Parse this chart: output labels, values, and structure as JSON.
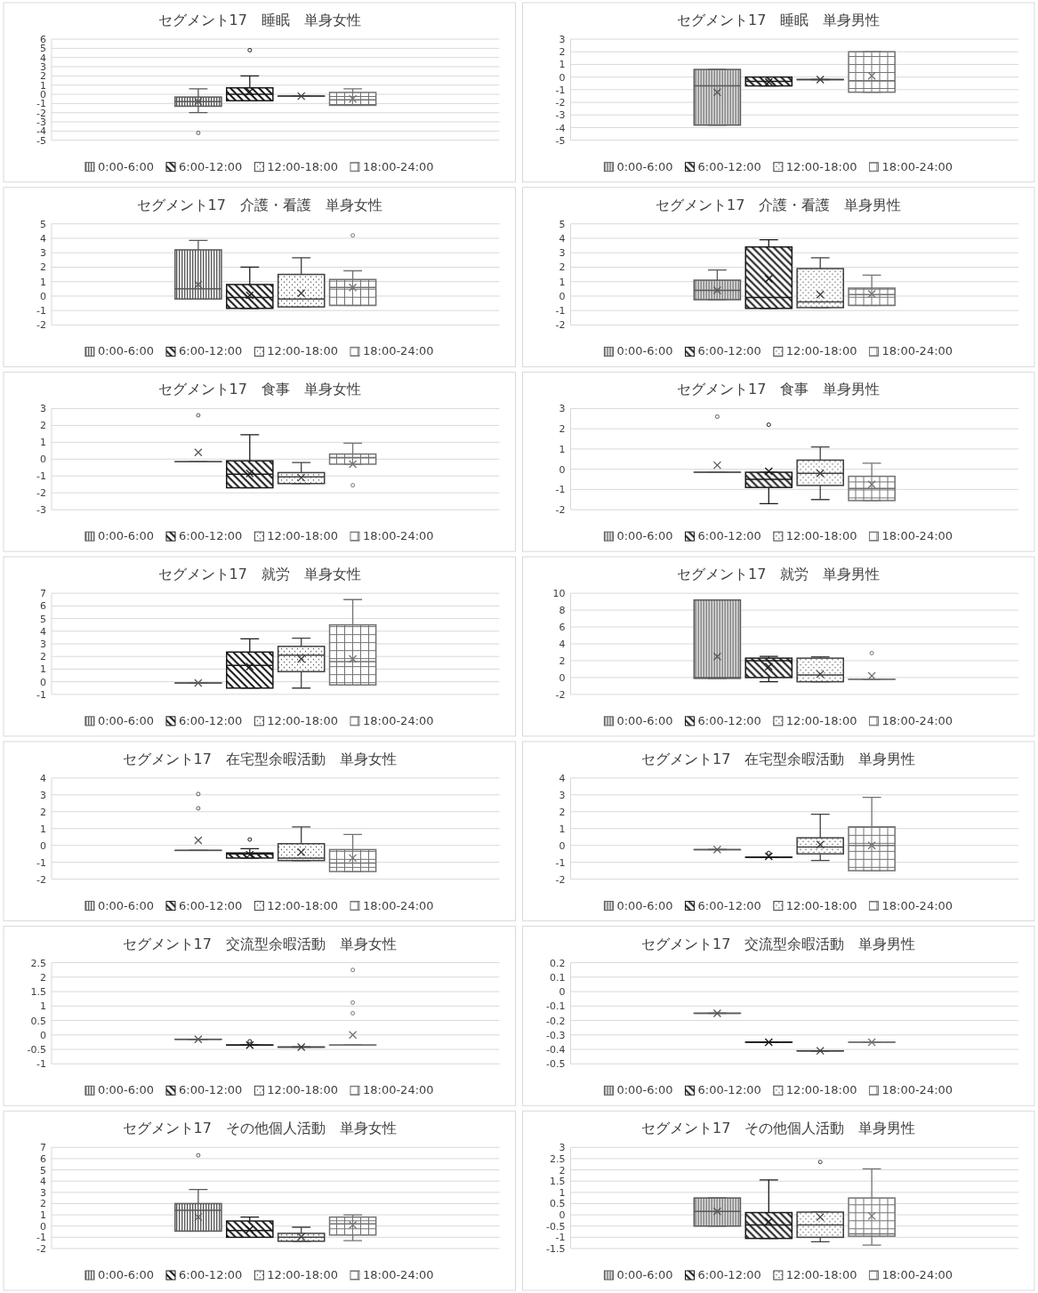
{
  "chart_data": [
    {
      "type": "box",
      "title": "セグメント17　睡眠　単身女性",
      "categories": [
        null
      ],
      "ylim": [
        -5,
        6
      ],
      "yticks": [
        -5,
        -4,
        -3,
        -2,
        -1,
        0,
        1,
        2,
        3,
        4,
        5,
        6
      ],
      "grid": "y",
      "legend": "bottom",
      "series": [
        {
          "name": "0:00-6:00",
          "color": "#595959",
          "boxes": [
            {
              "low": -2,
              "q1": -1.3,
              "median": -0.8,
              "q3": -0.3,
              "high": 0.6,
              "mean": -0.8,
              "outliers": [
                -4.2
              ]
            }
          ]
        },
        {
          "name": "6:00-12:00",
          "color": "#1a1a1a",
          "boxes": [
            {
              "low": -0.7,
              "q1": -0.7,
              "median": 0,
              "q3": 0.7,
              "high": 2,
              "mean": 0.3,
              "outliers": [
                4.8
              ]
            }
          ]
        },
        {
          "name": "12:00-18:00",
          "color": "#404040",
          "boxes": [
            {
              "low": -0.2,
              "q1": -0.2,
              "median": -0.2,
              "q3": -0.2,
              "high": -0.2,
              "mean": -0.2
            }
          ]
        },
        {
          "name": "18:00-24:00",
          "color": "#737373",
          "boxes": [
            {
              "low": -1.2,
              "q1": -1.2,
              "median": -0.6,
              "q3": 0.2,
              "high": 0.6,
              "mean": -0.5
            }
          ]
        }
      ]
    },
    {
      "type": "box",
      "title": "セグメント17　睡眠　単身男性",
      "categories": [
        null
      ],
      "ylim": [
        -5,
        3
      ],
      "yticks": [
        -5,
        -4,
        -3,
        -2,
        -1,
        0,
        1,
        2,
        3
      ],
      "grid": "y",
      "legend": "bottom",
      "series": [
        {
          "name": "0:00-6:00",
          "color": "#595959",
          "boxes": [
            {
              "low": -3.8,
              "q1": -3.8,
              "median": -0.7,
              "q3": 0.6,
              "high": 0.6,
              "mean": -1.2
            }
          ]
        },
        {
          "name": "6:00-12:00",
          "color": "#1a1a1a",
          "boxes": [
            {
              "low": -0.7,
              "q1": -0.7,
              "median": -0.35,
              "q3": 0,
              "high": 0,
              "mean": -0.4
            }
          ]
        },
        {
          "name": "12:00-18:00",
          "color": "#404040",
          "boxes": [
            {
              "low": -0.2,
              "q1": -0.2,
              "median": -0.2,
              "q3": -0.2,
              "high": -0.2,
              "mean": -0.2
            }
          ]
        },
        {
          "name": "18:00-24:00",
          "color": "#737373",
          "boxes": [
            {
              "low": -1.2,
              "q1": -1.2,
              "median": -0.3,
              "q3": 2,
              "high": 2,
              "mean": 0.1
            }
          ]
        }
      ]
    },
    {
      "type": "box",
      "title": "セグメント17　介護・看護　単身女性",
      "categories": [
        null
      ],
      "ylim": [
        -2,
        5
      ],
      "yticks": [
        -2,
        -1,
        0,
        1,
        2,
        3,
        4,
        5
      ],
      "grid": "y",
      "legend": "bottom",
      "series": [
        {
          "name": "0:00-6:00",
          "color": "#595959",
          "boxes": [
            {
              "low": -0.2,
              "q1": -0.2,
              "median": 0.5,
              "q3": 3.2,
              "high": 3.85,
              "mean": 0.8
            }
          ]
        },
        {
          "name": "6:00-12:00",
          "color": "#1a1a1a",
          "boxes": [
            {
              "low": -0.85,
              "q1": -0.85,
              "median": -0.1,
              "q3": 0.8,
              "high": 2,
              "mean": 0.05
            }
          ]
        },
        {
          "name": "12:00-18:00",
          "color": "#404040",
          "boxes": [
            {
              "low": -0.75,
              "q1": -0.75,
              "median": -0.2,
              "q3": 1.5,
              "high": 2.65,
              "mean": 0.2
            }
          ]
        },
        {
          "name": "18:00-24:00",
          "color": "#737373",
          "boxes": [
            {
              "low": -0.65,
              "q1": -0.65,
              "median": 0.6,
              "q3": 1.15,
              "high": 1.75,
              "mean": 0.6,
              "outliers": [
                4.2
              ]
            }
          ]
        }
      ]
    },
    {
      "type": "box",
      "title": "セグメント17　介護・看護　単身男性",
      "categories": [
        null
      ],
      "ylim": [
        -2,
        5
      ],
      "yticks": [
        -2,
        -1,
        0,
        1,
        2,
        3,
        4,
        5
      ],
      "grid": "y",
      "legend": "bottom",
      "series": [
        {
          "name": "0:00-6:00",
          "color": "#595959",
          "boxes": [
            {
              "low": -0.25,
              "q1": -0.25,
              "median": 0.4,
              "q3": 1.1,
              "high": 1.8,
              "mean": 0.4
            }
          ]
        },
        {
          "name": "6:00-12:00",
          "color": "#1a1a1a",
          "boxes": [
            {
              "low": -0.85,
              "q1": -0.85,
              "median": -0.1,
              "q3": 3.4,
              "high": 3.9,
              "mean": 1.2
            }
          ]
        },
        {
          "name": "12:00-18:00",
          "color": "#404040",
          "boxes": [
            {
              "low": -0.8,
              "q1": -0.8,
              "median": -0.4,
              "q3": 1.9,
              "high": 2.65,
              "mean": 0.1
            }
          ]
        },
        {
          "name": "18:00-24:00",
          "color": "#737373",
          "boxes": [
            {
              "low": -0.65,
              "q1": -0.65,
              "median": 0.1,
              "q3": 0.55,
              "high": 1.45,
              "mean": 0.15
            }
          ]
        }
      ]
    },
    {
      "type": "box",
      "title": "セグメント17　食事　単身女性",
      "categories": [
        null
      ],
      "ylim": [
        -3,
        3
      ],
      "yticks": [
        -3,
        -2,
        -1,
        0,
        1,
        2,
        3
      ],
      "grid": "y",
      "legend": "bottom",
      "series": [
        {
          "name": "0:00-6:00",
          "color": "#595959",
          "boxes": [
            {
              "low": -0.15,
              "q1": -0.15,
              "median": -0.15,
              "q3": -0.15,
              "high": -0.15,
              "mean": 0.4,
              "outliers": [
                2.6
              ]
            }
          ]
        },
        {
          "name": "6:00-12:00",
          "color": "#1a1a1a",
          "boxes": [
            {
              "low": -1.7,
              "q1": -1.7,
              "median": -0.9,
              "q3": -0.1,
              "high": 1.45,
              "mean": -0.85
            }
          ]
        },
        {
          "name": "12:00-18:00",
          "color": "#404040",
          "boxes": [
            {
              "low": -1.45,
              "q1": -1.45,
              "median": -1.05,
              "q3": -0.8,
              "high": -0.2,
              "mean": -1.1
            }
          ]
        },
        {
          "name": "18:00-24:00",
          "color": "#737373",
          "boxes": [
            {
              "low": -0.3,
              "q1": -0.3,
              "median": 0.1,
              "q3": 0.3,
              "high": 0.95,
              "mean": -0.3,
              "outliers": [
                -1.55
              ]
            }
          ]
        }
      ]
    },
    {
      "type": "box",
      "title": "セグメント17　食事　単身男性",
      "categories": [
        null
      ],
      "ylim": [
        -2,
        3
      ],
      "yticks": [
        -2,
        -1,
        0,
        1,
        2,
        3
      ],
      "grid": "y",
      "legend": "bottom",
      "series": [
        {
          "name": "0:00-6:00",
          "color": "#595959",
          "boxes": [
            {
              "low": -0.15,
              "q1": -0.15,
              "median": -0.15,
              "q3": -0.15,
              "high": -0.15,
              "mean": 0.2,
              "outliers": [
                2.6
              ]
            }
          ]
        },
        {
          "name": "6:00-12:00",
          "color": "#1a1a1a",
          "boxes": [
            {
              "low": -1.7,
              "q1": -0.9,
              "median": -0.5,
              "q3": -0.15,
              "high": -0.15,
              "mean": -0.1,
              "outliers": [
                2.2
              ]
            }
          ]
        },
        {
          "name": "12:00-18:00",
          "color": "#404040",
          "boxes": [
            {
              "low": -1.5,
              "q1": -0.8,
              "median": -0.2,
              "q3": 0.45,
              "high": 1.1,
              "mean": -0.2
            }
          ]
        },
        {
          "name": "18:00-24:00",
          "color": "#737373",
          "boxes": [
            {
              "low": -1.55,
              "q1": -1.55,
              "median": -0.95,
              "q3": -0.35,
              "high": 0.3,
              "mean": -0.75
            }
          ]
        }
      ]
    },
    {
      "type": "box",
      "title": "セグメント17　就労　単身女性",
      "categories": [
        null
      ],
      "ylim": [
        -1,
        7
      ],
      "yticks": [
        -1,
        0,
        1,
        2,
        3,
        4,
        5,
        6,
        7
      ],
      "grid": "y",
      "legend": "bottom",
      "series": [
        {
          "name": "0:00-6:00",
          "color": "#595959",
          "boxes": [
            {
              "low": -0.1,
              "q1": -0.1,
              "median": -0.1,
              "q3": -0.1,
              "high": -0.1,
              "mean": -0.1
            }
          ]
        },
        {
          "name": "6:00-12:00",
          "color": "#1a1a1a",
          "boxes": [
            {
              "low": -0.5,
              "q1": -0.5,
              "median": 1.3,
              "q3": 2.35,
              "high": 3.4,
              "mean": 1.2
            }
          ]
        },
        {
          "name": "12:00-18:00",
          "color": "#404040",
          "boxes": [
            {
              "low": -0.5,
              "q1": 0.8,
              "median": 2.1,
              "q3": 2.8,
              "high": 3.45,
              "mean": 1.8
            }
          ]
        },
        {
          "name": "18:00-24:00",
          "color": "#737373",
          "boxes": [
            {
              "low": -0.25,
              "q1": -0.25,
              "median": 1.6,
              "q3": 4.5,
              "high": 6.5,
              "mean": 1.8
            }
          ]
        }
      ]
    },
    {
      "type": "box",
      "title": "セグメント17　就労　単身男性",
      "categories": [
        null
      ],
      "ylim": [
        -2,
        10
      ],
      "yticks": [
        -2,
        0,
        2,
        4,
        6,
        8,
        10
      ],
      "grid": "y",
      "legend": "bottom",
      "series": [
        {
          "name": "0:00-6:00",
          "color": "#595959",
          "boxes": [
            {
              "low": -0.1,
              "q1": -0.1,
              "median": 0,
              "q3": 9.2,
              "high": 9.2,
              "mean": 2.5
            }
          ]
        },
        {
          "name": "6:00-12:00",
          "color": "#1a1a1a",
          "boxes": [
            {
              "low": -0.5,
              "q1": 0,
              "median": 2,
              "q3": 2.3,
              "high": 2.5,
              "mean": 1.3
            }
          ]
        },
        {
          "name": "12:00-18:00",
          "color": "#404040",
          "boxes": [
            {
              "low": -0.5,
              "q1": -0.5,
              "median": 0.3,
              "q3": 2.3,
              "high": 2.45,
              "mean": 0.4
            }
          ]
        },
        {
          "name": "18:00-24:00",
          "color": "#737373",
          "boxes": [
            {
              "low": -0.2,
              "q1": -0.2,
              "median": -0.2,
              "q3": -0.2,
              "high": -0.2,
              "mean": 0.2,
              "outliers": [
                2.9
              ]
            }
          ]
        }
      ]
    },
    {
      "type": "box",
      "title": "セグメント17　在宅型余暇活動　単身女性",
      "categories": [
        null
      ],
      "ylim": [
        -2,
        4
      ],
      "yticks": [
        -2,
        -1,
        0,
        1,
        2,
        3,
        4
      ],
      "grid": "y",
      "legend": "bottom",
      "series": [
        {
          "name": "0:00-6:00",
          "color": "#595959",
          "boxes": [
            {
              "low": -0.3,
              "q1": -0.3,
              "median": -0.3,
              "q3": -0.3,
              "high": -0.3,
              "mean": 0.3,
              "outliers": [
                2.2,
                3.05
              ]
            }
          ]
        },
        {
          "name": "6:00-12:00",
          "color": "#1a1a1a",
          "boxes": [
            {
              "low": -0.75,
              "q1": -0.75,
              "median": -0.5,
              "q3": -0.45,
              "high": -0.2,
              "mean": -0.55,
              "outliers": [
                0.35
              ]
            }
          ]
        },
        {
          "name": "12:00-18:00",
          "color": "#404040",
          "boxes": [
            {
              "low": -0.9,
              "q1": -0.9,
              "median": -0.75,
              "q3": 0.1,
              "high": 1.1,
              "mean": -0.4
            }
          ]
        },
        {
          "name": "18:00-24:00",
          "color": "#737373",
          "boxes": [
            {
              "low": -1.55,
              "q1": -1.55,
              "median": -1.05,
              "q3": -0.25,
              "high": 0.65,
              "mean": -0.75
            }
          ]
        }
      ]
    },
    {
      "type": "box",
      "title": "セグメント17　在宅型余暇活動　単身男性",
      "categories": [
        null
      ],
      "ylim": [
        -2,
        4
      ],
      "yticks": [
        -2,
        -1,
        0,
        1,
        2,
        3,
        4
      ],
      "grid": "y",
      "legend": "bottom",
      "series": [
        {
          "name": "0:00-6:00",
          "color": "#595959",
          "boxes": [
            {
              "low": -0.25,
              "q1": -0.25,
              "median": -0.25,
              "q3": -0.25,
              "high": -0.25,
              "mean": -0.25
            }
          ]
        },
        {
          "name": "6:00-12:00",
          "color": "#1a1a1a",
          "boxes": [
            {
              "low": -0.7,
              "q1": -0.7,
              "median": -0.7,
              "q3": -0.7,
              "high": -0.7,
              "mean": -0.65,
              "outliers": [
                -0.45
              ]
            }
          ]
        },
        {
          "name": "12:00-18:00",
          "color": "#404040",
          "boxes": [
            {
              "low": -0.9,
              "q1": -0.5,
              "median": -0.1,
              "q3": 0.45,
              "high": 1.85,
              "mean": 0.05
            }
          ]
        },
        {
          "name": "18:00-24:00",
          "color": "#737373",
          "boxes": [
            {
              "low": -1.5,
              "q1": -1.5,
              "median": 0,
              "q3": 1.1,
              "high": 2.85,
              "mean": 0
            }
          ]
        }
      ]
    },
    {
      "type": "box",
      "title": "セグメント17　交流型余暇活動　単身女性",
      "categories": [
        null
      ],
      "ylim": [
        -1,
        2.5
      ],
      "yticks": [
        -1,
        -0.5,
        0,
        0.5,
        1,
        1.5,
        2,
        2.5
      ],
      "grid": "y",
      "legend": "bottom",
      "series": [
        {
          "name": "0:00-6:00",
          "color": "#595959",
          "boxes": [
            {
              "low": -0.15,
              "q1": -0.15,
              "median": -0.15,
              "q3": -0.15,
              "high": -0.15,
              "mean": -0.15
            }
          ]
        },
        {
          "name": "6:00-12:00",
          "color": "#1a1a1a",
          "boxes": [
            {
              "low": -0.35,
              "q1": -0.35,
              "median": -0.35,
              "q3": -0.35,
              "high": -0.35,
              "mean": -0.35,
              "outliers": [
                -0.22
              ]
            }
          ]
        },
        {
          "name": "12:00-18:00",
          "color": "#404040",
          "boxes": [
            {
              "low": -0.42,
              "q1": -0.42,
              "median": -0.42,
              "q3": -0.42,
              "high": -0.42,
              "mean": -0.42
            }
          ]
        },
        {
          "name": "18:00-24:00",
          "color": "#737373",
          "boxes": [
            {
              "low": -0.35,
              "q1": -0.35,
              "median": -0.35,
              "q3": -0.35,
              "high": -0.35,
              "mean": 0,
              "outliers": [
                0.75,
                1.12,
                2.25
              ]
            }
          ]
        }
      ]
    },
    {
      "type": "box",
      "title": "セグメント17　交流型余暇活動　単身男性",
      "categories": [
        null
      ],
      "ylim": [
        -0.5,
        0.2
      ],
      "yticks": [
        -0.5,
        -0.4,
        -0.3,
        -0.2,
        -0.1,
        0,
        0.1,
        0.2
      ],
      "grid": "y",
      "legend": "bottom",
      "series": [
        {
          "name": "0:00-6:00",
          "color": "#595959",
          "boxes": [
            {
              "low": -0.15,
              "q1": -0.15,
              "median": -0.15,
              "q3": -0.15,
              "high": -0.15,
              "mean": -0.15
            }
          ]
        },
        {
          "name": "6:00-12:00",
          "color": "#1a1a1a",
          "boxes": [
            {
              "low": -0.35,
              "q1": -0.35,
              "median": -0.35,
              "q3": -0.35,
              "high": -0.35,
              "mean": -0.35
            }
          ]
        },
        {
          "name": "12:00-18:00",
          "color": "#404040",
          "boxes": [
            {
              "low": -0.41,
              "q1": -0.41,
              "median": -0.41,
              "q3": -0.41,
              "high": -0.41,
              "mean": -0.41
            }
          ]
        },
        {
          "name": "18:00-24:00",
          "color": "#737373",
          "boxes": [
            {
              "low": -0.35,
              "q1": -0.35,
              "median": -0.35,
              "q3": -0.35,
              "high": -0.35,
              "mean": -0.35
            }
          ]
        }
      ]
    },
    {
      "type": "box",
      "title": "セグメント17　その他個人活動　単身女性",
      "categories": [
        null
      ],
      "ylim": [
        -2,
        7
      ],
      "yticks": [
        -2,
        -1,
        0,
        1,
        2,
        3,
        4,
        5,
        6,
        7
      ],
      "grid": "y",
      "legend": "bottom",
      "series": [
        {
          "name": "0:00-6:00",
          "color": "#595959",
          "boxes": [
            {
              "low": -0.45,
              "q1": -0.45,
              "median": 1.4,
              "q3": 2,
              "high": 3.25,
              "mean": 0.8,
              "outliers": [
                6.3
              ]
            }
          ]
        },
        {
          "name": "6:00-12:00",
          "color": "#1a1a1a",
          "boxes": [
            {
              "low": -1,
              "q1": -1,
              "median": -0.4,
              "q3": 0.45,
              "high": 0.8,
              "mean": -0.3
            }
          ]
        },
        {
          "name": "12:00-18:00",
          "color": "#404040",
          "boxes": [
            {
              "low": -1.35,
              "q1": -1.35,
              "median": -1,
              "q3": -0.65,
              "high": -0.1,
              "mean": -0.95
            }
          ]
        },
        {
          "name": "18:00-24:00",
          "color": "#737373",
          "boxes": [
            {
              "low": -1.3,
              "q1": -0.8,
              "median": 0.2,
              "q3": 0.8,
              "high": 1,
              "mean": 0.1
            }
          ]
        }
      ]
    },
    {
      "type": "box",
      "title": "セグメント17　その他個人活動　単身男性",
      "categories": [
        null
      ],
      "ylim": [
        -1.5,
        3
      ],
      "yticks": [
        -1.5,
        -1,
        -0.5,
        0,
        0.5,
        1,
        1.5,
        2,
        2.5,
        3
      ],
      "grid": "y",
      "legend": "bottom",
      "series": [
        {
          "name": "0:00-6:00",
          "color": "#595959",
          "boxes": [
            {
              "low": -0.5,
              "q1": -0.5,
              "median": 0.15,
              "q3": 0.75,
              "high": 0.75,
              "mean": 0.15
            }
          ]
        },
        {
          "name": "6:00-12:00",
          "color": "#1a1a1a",
          "boxes": [
            {
              "low": -1.05,
              "q1": -1.05,
              "median": -0.45,
              "q3": 0.1,
              "high": 1.55,
              "mean": -0.3
            }
          ]
        },
        {
          "name": "12:00-18:00",
          "color": "#404040",
          "boxes": [
            {
              "low": -1.2,
              "q1": -1,
              "median": -0.45,
              "q3": 0.12,
              "high": 0.12,
              "mean": -0.1,
              "outliers": [
                2.35
              ]
            }
          ]
        },
        {
          "name": "18:00-24:00",
          "color": "#737373",
          "boxes": [
            {
              "low": -1.35,
              "q1": -0.95,
              "median": -0.85,
              "q3": 0.75,
              "high": 2.05,
              "mean": -0.05
            }
          ]
        }
      ]
    }
  ]
}
